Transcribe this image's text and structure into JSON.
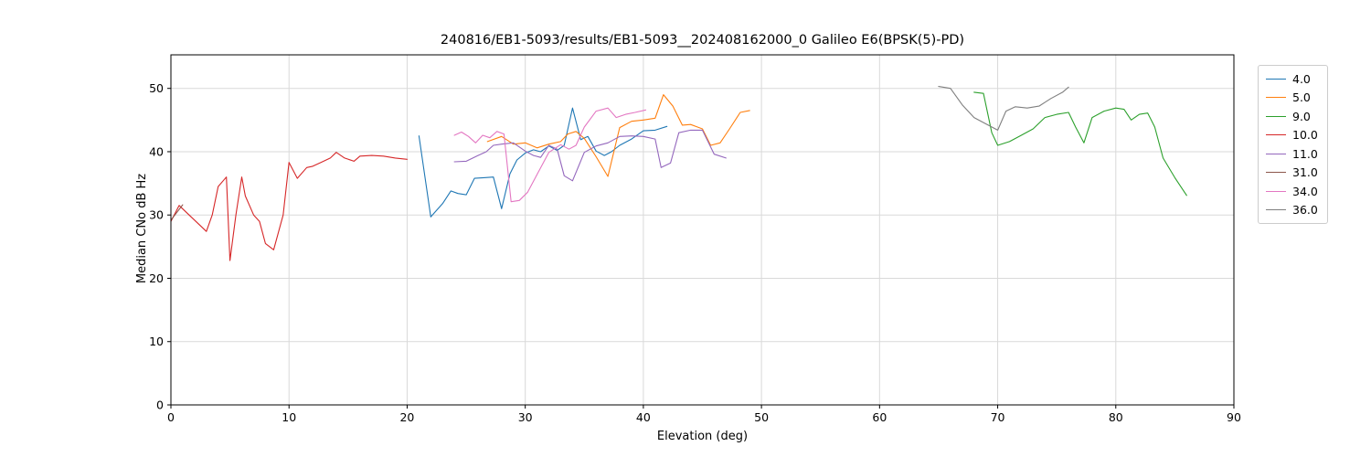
{
  "chart_data": {
    "type": "line",
    "title": "240816/EB1-5093/results/EB1-5093__202408162000_0 Galileo E6(BPSK(5)-PD)",
    "xlabel": "Elevation (deg)",
    "ylabel": "Median CNo dB Hz",
    "xlim": [
      0,
      90
    ],
    "ylim": [
      0,
      55.3
    ],
    "xticks": [
      0,
      10,
      20,
      30,
      40,
      50,
      60,
      70,
      80,
      90
    ],
    "yticks": [
      0,
      10,
      20,
      30,
      40,
      50
    ],
    "grid": true,
    "legend_position": "outside-right",
    "series": [
      {
        "name": "4.0",
        "color": "#1f77b4",
        "points": [
          [
            21,
            42.5
          ],
          [
            22,
            29.7
          ],
          [
            23,
            31.8
          ],
          [
            23.7,
            33.8
          ],
          [
            24.3,
            33.4
          ],
          [
            25,
            33.2
          ],
          [
            25.7,
            35.8
          ],
          [
            26.5,
            35.9
          ],
          [
            27.3,
            36.0
          ],
          [
            28,
            31.0
          ],
          [
            28.7,
            36.5
          ],
          [
            29.3,
            38.7
          ],
          [
            30,
            39.8
          ],
          [
            30.7,
            40.3
          ],
          [
            31.3,
            40.0
          ],
          [
            32,
            40.9
          ],
          [
            32.7,
            40.2
          ],
          [
            33.3,
            41.0
          ],
          [
            34,
            46.9
          ],
          [
            34.7,
            41.9
          ],
          [
            35.3,
            42.4
          ],
          [
            36,
            40.1
          ],
          [
            36.7,
            39.4
          ],
          [
            37.3,
            40.0
          ],
          [
            38,
            41.0
          ],
          [
            39,
            42.0
          ],
          [
            40,
            43.3
          ],
          [
            41,
            43.4
          ],
          [
            42,
            44.0
          ]
        ]
      },
      {
        "name": "5.0",
        "color": "#ff7f0e",
        "points": [
          [
            26.8,
            41.6
          ],
          [
            28,
            42.4
          ],
          [
            29,
            41.2
          ],
          [
            30,
            41.4
          ],
          [
            31,
            40.6
          ],
          [
            32,
            41.2
          ],
          [
            33,
            41.6
          ],
          [
            33.6,
            42.8
          ],
          [
            34.3,
            43.2
          ],
          [
            35,
            42.1
          ],
          [
            36,
            39.2
          ],
          [
            37,
            36.1
          ],
          [
            38,
            43.8
          ],
          [
            39,
            44.8
          ],
          [
            40,
            45.0
          ],
          [
            41,
            45.3
          ],
          [
            41.7,
            49.0
          ],
          [
            42.5,
            47.2
          ],
          [
            43.3,
            44.2
          ],
          [
            44,
            44.3
          ],
          [
            45,
            43.6
          ],
          [
            45.7,
            41.0
          ],
          [
            46.5,
            41.4
          ],
          [
            47.3,
            43.6
          ],
          [
            48.2,
            46.2
          ],
          [
            49,
            46.5
          ]
        ]
      },
      {
        "name": "9.0",
        "color": "#2ca02c",
        "points": [
          [
            68,
            49.4
          ],
          [
            68.8,
            49.2
          ],
          [
            69.5,
            43.0
          ],
          [
            70,
            41.0
          ],
          [
            71,
            41.6
          ],
          [
            72,
            42.6
          ],
          [
            73,
            43.6
          ],
          [
            74,
            45.4
          ],
          [
            75,
            45.9
          ],
          [
            76,
            46.2
          ],
          [
            76.6,
            43.9
          ],
          [
            77.3,
            41.4
          ],
          [
            78,
            45.4
          ],
          [
            79,
            46.4
          ],
          [
            80,
            46.9
          ],
          [
            80.7,
            46.7
          ],
          [
            81.3,
            45.0
          ],
          [
            82,
            45.9
          ],
          [
            82.7,
            46.1
          ],
          [
            83.3,
            43.9
          ],
          [
            84,
            39.0
          ],
          [
            85,
            35.9
          ],
          [
            86,
            33.1
          ]
        ]
      },
      {
        "name": "10.0",
        "color": "#d62728",
        "points": [
          [
            0,
            29.0
          ],
          [
            0.7,
            31.5
          ],
          [
            3,
            27.4
          ],
          [
            3.5,
            30.0
          ],
          [
            4,
            34.5
          ],
          [
            4.7,
            36.0
          ],
          [
            5,
            22.8
          ],
          [
            5.5,
            30.0
          ],
          [
            6,
            36.0
          ],
          [
            6.3,
            33.0
          ],
          [
            7,
            30.0
          ],
          [
            7.5,
            29.0
          ],
          [
            8,
            25.5
          ],
          [
            8.7,
            24.5
          ],
          [
            9.5,
            30.0
          ],
          [
            10,
            38.3
          ],
          [
            10.7,
            35.8
          ],
          [
            11.5,
            37.5
          ],
          [
            12,
            37.7
          ],
          [
            12.7,
            38.3
          ],
          [
            13.5,
            39.0
          ],
          [
            14,
            39.9
          ],
          [
            14.7,
            39.0
          ],
          [
            15.5,
            38.5
          ],
          [
            16,
            39.3
          ],
          [
            17,
            39.4
          ],
          [
            18,
            39.3
          ],
          [
            19,
            39.0
          ],
          [
            20,
            38.8
          ]
        ]
      },
      {
        "name": "11.0",
        "color": "#9467bd",
        "points": [
          [
            24,
            38.4
          ],
          [
            25,
            38.5
          ],
          [
            26,
            39.4
          ],
          [
            26.7,
            40.0
          ],
          [
            27.3,
            41.0
          ],
          [
            28,
            41.2
          ],
          [
            29,
            41.4
          ],
          [
            30,
            40.1
          ],
          [
            30.7,
            39.4
          ],
          [
            31.3,
            39.1
          ],
          [
            32,
            41.0
          ],
          [
            32.7,
            40.4
          ],
          [
            33.3,
            36.2
          ],
          [
            34,
            35.4
          ],
          [
            35,
            39.9
          ],
          [
            36,
            40.9
          ],
          [
            37,
            41.4
          ],
          [
            38,
            42.4
          ],
          [
            39,
            42.5
          ],
          [
            40,
            42.4
          ],
          [
            41,
            42.0
          ],
          [
            41.5,
            37.5
          ],
          [
            42.3,
            38.2
          ],
          [
            43,
            43.0
          ],
          [
            44,
            43.4
          ],
          [
            45,
            43.4
          ],
          [
            46,
            39.6
          ],
          [
            47,
            39.0
          ]
        ]
      },
      {
        "name": "31.0",
        "color": "#8c564b",
        "points": [
          [
            0,
            29.2
          ],
          [
            1,
            31.6
          ]
        ]
      },
      {
        "name": "34.0",
        "color": "#e377c2",
        "points": [
          [
            24,
            42.6
          ],
          [
            24.6,
            43.1
          ],
          [
            25.2,
            42.4
          ],
          [
            25.8,
            41.4
          ],
          [
            26.4,
            42.6
          ],
          [
            27,
            42.2
          ],
          [
            27.6,
            43.2
          ],
          [
            28.2,
            42.8
          ],
          [
            28.8,
            32.1
          ],
          [
            29.5,
            32.3
          ],
          [
            30.2,
            33.6
          ],
          [
            31,
            36.4
          ],
          [
            32,
            39.9
          ],
          [
            33,
            41.1
          ],
          [
            33.7,
            40.4
          ],
          [
            34.3,
            41.0
          ],
          [
            35,
            43.9
          ],
          [
            36,
            46.4
          ],
          [
            37,
            46.9
          ],
          [
            37.7,
            45.4
          ],
          [
            38.5,
            45.9
          ],
          [
            39.3,
            46.2
          ],
          [
            40.2,
            46.6
          ]
        ]
      },
      {
        "name": "36.0",
        "color": "#7f7f7f",
        "points": [
          [
            65,
            50.3
          ],
          [
            66,
            50.0
          ],
          [
            67,
            47.4
          ],
          [
            68,
            45.4
          ],
          [
            69,
            44.4
          ],
          [
            70,
            43.4
          ],
          [
            70.7,
            46.4
          ],
          [
            71.5,
            47.1
          ],
          [
            72.5,
            46.9
          ],
          [
            73.5,
            47.2
          ],
          [
            74.5,
            48.4
          ],
          [
            75.5,
            49.4
          ],
          [
            76,
            50.2
          ]
        ]
      }
    ]
  }
}
